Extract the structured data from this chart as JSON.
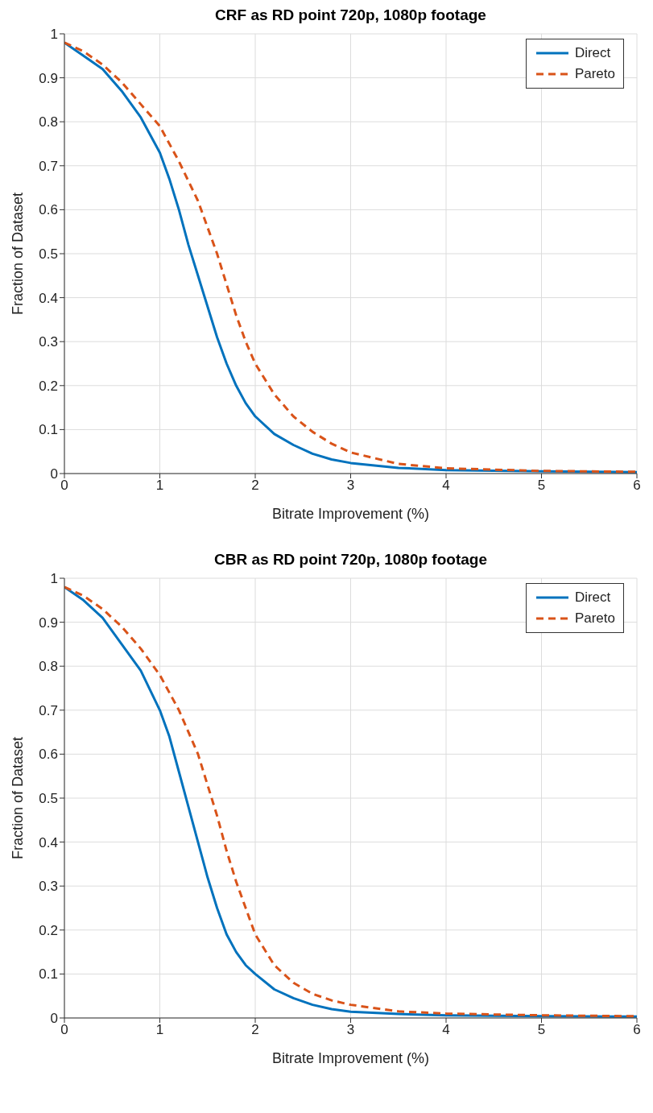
{
  "chart_data": [
    {
      "type": "line",
      "title": "CRF as RD point 720p, 1080p footage",
      "xlabel": "Bitrate Improvement (%)",
      "ylabel": "Fraction of Dataset",
      "xlim": [
        0,
        6
      ],
      "xticks": [
        0,
        1,
        2,
        3,
        4,
        5,
        6
      ],
      "ylim": [
        0,
        1
      ],
      "yticks": [
        0,
        0.1,
        0.2,
        0.3,
        0.4,
        0.5,
        0.6,
        0.7,
        0.8,
        0.9,
        1
      ],
      "grid": true,
      "legend": "top right",
      "marker": "none",
      "series": [
        {
          "name": "Direct",
          "color": "#0072bd",
          "line_style": "solid",
          "x": [
            0,
            0.2,
            0.4,
            0.6,
            0.8,
            1.0,
            1.1,
            1.2,
            1.3,
            1.4,
            1.5,
            1.6,
            1.7,
            1.8,
            1.9,
            2.0,
            2.2,
            2.4,
            2.6,
            2.8,
            3.0,
            3.5,
            4,
            5,
            6
          ],
          "values": [
            0.98,
            0.95,
            0.92,
            0.87,
            0.81,
            0.73,
            0.67,
            0.6,
            0.52,
            0.45,
            0.38,
            0.31,
            0.25,
            0.2,
            0.16,
            0.13,
            0.09,
            0.065,
            0.045,
            0.032,
            0.024,
            0.013,
            0.008,
            0.005,
            0.003
          ]
        },
        {
          "name": "Pareto",
          "color": "#d95319",
          "line_style": "dashed",
          "x": [
            0,
            0.2,
            0.4,
            0.6,
            0.8,
            1.0,
            1.2,
            1.4,
            1.5,
            1.6,
            1.7,
            1.8,
            1.9,
            2.0,
            2.2,
            2.4,
            2.6,
            2.8,
            3.0,
            3.5,
            4,
            5,
            6
          ],
          "values": [
            0.98,
            0.96,
            0.93,
            0.89,
            0.84,
            0.79,
            0.71,
            0.62,
            0.56,
            0.5,
            0.43,
            0.36,
            0.3,
            0.25,
            0.18,
            0.13,
            0.095,
            0.068,
            0.048,
            0.022,
            0.012,
            0.006,
            0.004
          ]
        }
      ]
    },
    {
      "type": "line",
      "title": "CBR as RD point 720p, 1080p footage",
      "xlabel": "Bitrate Improvement (%)",
      "ylabel": "Fraction of Dataset",
      "xlim": [
        0,
        6
      ],
      "xticks": [
        0,
        1,
        2,
        3,
        4,
        5,
        6
      ],
      "ylim": [
        0,
        1
      ],
      "yticks": [
        0,
        0.1,
        0.2,
        0.3,
        0.4,
        0.5,
        0.6,
        0.7,
        0.8,
        0.9,
        1
      ],
      "grid": true,
      "legend": "top right",
      "marker": "none",
      "series": [
        {
          "name": "Direct",
          "color": "#0072bd",
          "line_style": "solid",
          "x": [
            0,
            0.2,
            0.4,
            0.6,
            0.8,
            1.0,
            1.1,
            1.2,
            1.3,
            1.4,
            1.5,
            1.6,
            1.7,
            1.8,
            1.9,
            2.0,
            2.2,
            2.4,
            2.6,
            2.8,
            3.0,
            3.5,
            4,
            5,
            6
          ],
          "values": [
            0.98,
            0.95,
            0.91,
            0.85,
            0.79,
            0.7,
            0.64,
            0.56,
            0.48,
            0.4,
            0.32,
            0.25,
            0.19,
            0.15,
            0.12,
            0.1,
            0.065,
            0.045,
            0.03,
            0.02,
            0.014,
            0.009,
            0.006,
            0.004,
            0.003
          ]
        },
        {
          "name": "Pareto",
          "color": "#d95319",
          "line_style": "dashed",
          "x": [
            0,
            0.2,
            0.4,
            0.6,
            0.8,
            1.0,
            1.2,
            1.4,
            1.5,
            1.6,
            1.7,
            1.8,
            1.9,
            2.0,
            2.2,
            2.4,
            2.6,
            2.8,
            3.0,
            3.5,
            4,
            5,
            6
          ],
          "values": [
            0.98,
            0.96,
            0.93,
            0.89,
            0.84,
            0.78,
            0.7,
            0.6,
            0.53,
            0.46,
            0.38,
            0.31,
            0.25,
            0.19,
            0.12,
            0.08,
            0.055,
            0.04,
            0.03,
            0.015,
            0.01,
            0.006,
            0.004
          ]
        }
      ]
    }
  ]
}
